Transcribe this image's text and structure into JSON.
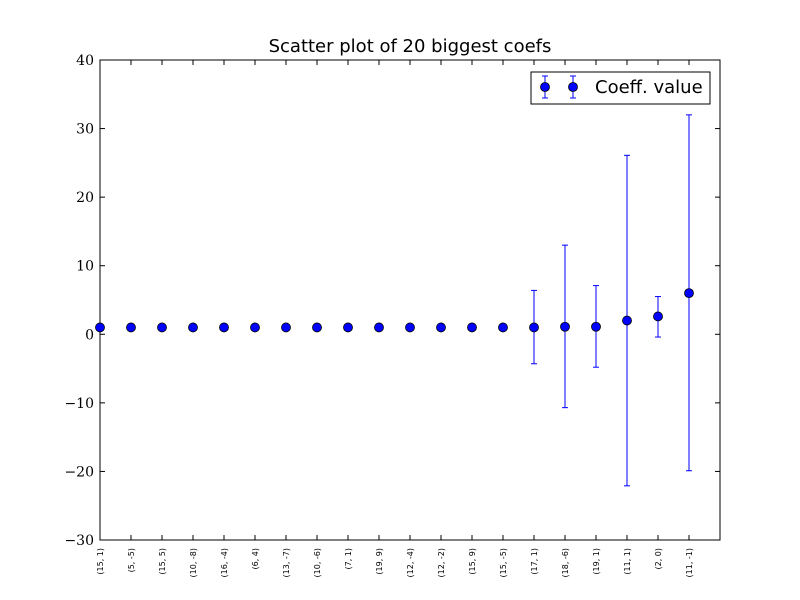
{
  "chart_data": {
    "type": "scatter",
    "title": "Scatter plot of 20 biggest coefs",
    "xlabel": "",
    "ylabel": "",
    "categories": [
      "(15, 1)",
      "(5, -5)",
      "(15, 5)",
      "(10, -8)",
      "(16, -4)",
      "(6, 4)",
      "(13, -7)",
      "(10, -6)",
      "(7, 1)",
      "(19, 9)",
      "(12, -4)",
      "(12, -2)",
      "(15, 9)",
      "(15, -5)",
      "(17, 1)",
      "(18, -6)",
      "(19, 1)",
      "(11, 1)",
      "(2, 0)",
      "(11, -1)"
    ],
    "series": [
      {
        "name": "Coeff. value",
        "color": "#0000ff",
        "values": [
          1.0,
          1.0,
          1.0,
          1.0,
          1.0,
          1.0,
          1.0,
          1.0,
          1.0,
          1.0,
          1.0,
          1.0,
          1.0,
          1.0,
          1.0,
          1.1,
          1.1,
          2.0,
          2.6,
          6.0
        ],
        "err_low": [
          null,
          null,
          null,
          null,
          null,
          null,
          null,
          null,
          null,
          null,
          null,
          null,
          null,
          null,
          -4.3,
          -10.7,
          -4.8,
          -22.1,
          -0.4,
          -19.9
        ],
        "err_high": [
          null,
          null,
          null,
          null,
          null,
          null,
          null,
          null,
          null,
          null,
          null,
          null,
          null,
          null,
          6.4,
          13.0,
          7.1,
          26.1,
          5.5,
          32.0
        ]
      }
    ],
    "ylim": [
      -30,
      40
    ],
    "yticks": [
      -30,
      -20,
      -10,
      0,
      10,
      20,
      30,
      40
    ],
    "ytick_labels": [
      "−30",
      "−20",
      "−10",
      "0",
      "10",
      "20",
      "30",
      "40"
    ],
    "grid": false,
    "legend": {
      "placement": "top-right",
      "label": "Coeff. value"
    }
  }
}
